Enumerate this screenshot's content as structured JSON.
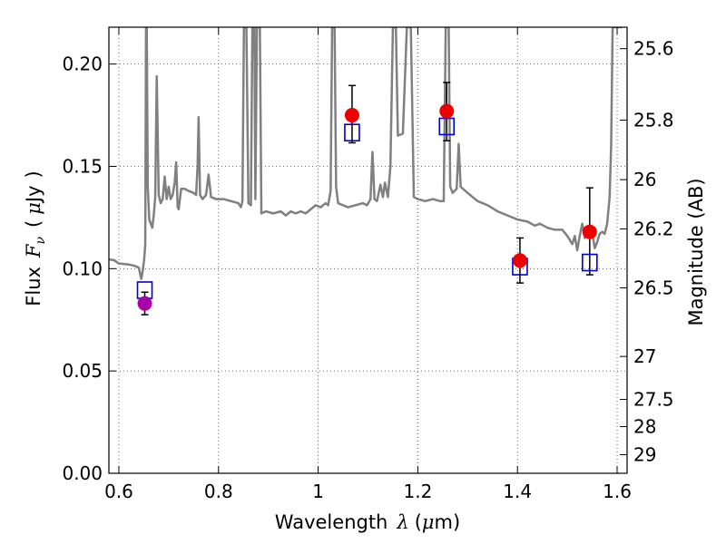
{
  "chart_data": {
    "type": "scatter",
    "xlabel": "Wavelength",
    "xlabel_symbol": "λ",
    "xlabel_unit_open": "(",
    "xlabel_unit_mu": "μ",
    "xlabel_unit_rest": "m)",
    "ylabel": "Flux",
    "ylabel_symbol": "F",
    "ylabel_subscript": "ν",
    "ylabel_unit_open": "(",
    "ylabel_unit_mu": "μ",
    "ylabel_unit_rest": "Jy",
    "ylabel_unit_close": ")",
    "y2label": "Magnitude (AB)",
    "xlim": [
      0.58,
      1.62
    ],
    "ylim": [
      0.0,
      0.218
    ],
    "grid": true,
    "x_ticks": [
      0.6,
      0.8,
      1.0,
      1.2,
      1.4,
      1.6
    ],
    "x_tick_labels": [
      "0.6",
      "0.8",
      "1",
      "1.2",
      "1.4",
      "1.6"
    ],
    "y_ticks": [
      0.0,
      0.05,
      0.1,
      0.15,
      0.2
    ],
    "y_tick_labels": [
      "0.00",
      "0.05",
      "0.10",
      "0.15",
      "0.20"
    ],
    "y2_ticks": [
      {
        "label": "25.6",
        "flux": 0.2075
      },
      {
        "label": "25.8",
        "flux": 0.1726
      },
      {
        "label": "26",
        "flux": 0.1435
      },
      {
        "label": "26.2",
        "flux": 0.1194
      },
      {
        "label": "26.5",
        "flux": 0.0906
      },
      {
        "label": "27",
        "flux": 0.0571
      },
      {
        "label": "27.5",
        "flux": 0.0361
      },
      {
        "label": "28",
        "flux": 0.0228
      },
      {
        "label": "29",
        "flux": 0.0091
      }
    ],
    "model_spectrum": {
      "color": "#808080",
      "points": [
        [
          0.58,
          0.1045
        ],
        [
          0.59,
          0.1042
        ],
        [
          0.6,
          0.1025
        ],
        [
          0.62,
          0.102
        ],
        [
          0.63,
          0.1015
        ],
        [
          0.64,
          0.1005
        ],
        [
          0.645,
          0.095
        ],
        [
          0.648,
          0.099
        ],
        [
          0.651,
          0.105
        ],
        [
          0.653,
          0.112
        ],
        [
          0.6545,
          0.218
        ],
        [
          0.656,
          0.218
        ],
        [
          0.658,
          0.14
        ],
        [
          0.661,
          0.124
        ],
        [
          0.664,
          0.122
        ],
        [
          0.667,
          0.12
        ],
        [
          0.67,
          0.126
        ],
        [
          0.673,
          0.135
        ],
        [
          0.676,
          0.194
        ],
        [
          0.68,
          0.136
        ],
        [
          0.684,
          0.132
        ],
        [
          0.688,
          0.134
        ],
        [
          0.692,
          0.145
        ],
        [
          0.696,
          0.134
        ],
        [
          0.7,
          0.14
        ],
        [
          0.704,
          0.134
        ],
        [
          0.708,
          0.136
        ],
        [
          0.712,
          0.142
        ],
        [
          0.715,
          0.152
        ],
        [
          0.718,
          0.13
        ],
        [
          0.72,
          0.129
        ],
        [
          0.725,
          0.139
        ],
        [
          0.732,
          0.139
        ],
        [
          0.74,
          0.138
        ],
        [
          0.75,
          0.137
        ],
        [
          0.755,
          0.136
        ],
        [
          0.758,
          0.15
        ],
        [
          0.76,
          0.174
        ],
        [
          0.763,
          0.136
        ],
        [
          0.768,
          0.134
        ],
        [
          0.775,
          0.136
        ],
        [
          0.78,
          0.146
        ],
        [
          0.785,
          0.135
        ],
        [
          0.795,
          0.134
        ],
        [
          0.81,
          0.134
        ],
        [
          0.825,
          0.133
        ],
        [
          0.84,
          0.132
        ],
        [
          0.845,
          0.13
        ],
        [
          0.848,
          0.133
        ],
        [
          0.851,
          0.218
        ],
        [
          0.856,
          0.218
        ],
        [
          0.86,
          0.132
        ],
        [
          0.865,
          0.131
        ],
        [
          0.868,
          0.218
        ],
        [
          0.872,
          0.218
        ],
        [
          0.874,
          0.134
        ],
        [
          0.877,
          0.218
        ],
        [
          0.883,
          0.218
        ],
        [
          0.886,
          0.127
        ],
        [
          0.895,
          0.128
        ],
        [
          0.91,
          0.127
        ],
        [
          0.925,
          0.128
        ],
        [
          0.935,
          0.126
        ],
        [
          0.945,
          0.128
        ],
        [
          0.955,
          0.127
        ],
        [
          0.965,
          0.128
        ],
        [
          0.975,
          0.127
        ],
        [
          0.985,
          0.129
        ],
        [
          0.995,
          0.131
        ],
        [
          1.005,
          0.13
        ],
        [
          1.015,
          0.132
        ],
        [
          1.02,
          0.131
        ],
        [
          1.025,
          0.138
        ],
        [
          1.028,
          0.218
        ],
        [
          1.033,
          0.218
        ],
        [
          1.036,
          0.14
        ],
        [
          1.04,
          0.132
        ],
        [
          1.05,
          0.131
        ],
        [
          1.06,
          0.13
        ],
        [
          1.075,
          0.131
        ],
        [
          1.09,
          0.132
        ],
        [
          1.098,
          0.131
        ],
        [
          1.105,
          0.134
        ],
        [
          1.109,
          0.157
        ],
        [
          1.113,
          0.134
        ],
        [
          1.118,
          0.133
        ],
        [
          1.125,
          0.141
        ],
        [
          1.13,
          0.135
        ],
        [
          1.134,
          0.142
        ],
        [
          1.14,
          0.135
        ],
        [
          1.145,
          0.15
        ],
        [
          1.15,
          0.218
        ],
        [
          1.156,
          0.218
        ],
        [
          1.16,
          0.165
        ],
        [
          1.17,
          0.166
        ],
        [
          1.178,
          0.218
        ],
        [
          1.186,
          0.218
        ],
        [
          1.192,
          0.135
        ],
        [
          1.2,
          0.134
        ],
        [
          1.215,
          0.133
        ],
        [
          1.23,
          0.134
        ],
        [
          1.245,
          0.133
        ],
        [
          1.252,
          0.133
        ],
        [
          1.256,
          0.218
        ],
        [
          1.262,
          0.218
        ],
        [
          1.265,
          0.14
        ],
        [
          1.27,
          0.137
        ],
        [
          1.278,
          0.139
        ],
        [
          1.282,
          0.161
        ],
        [
          1.286,
          0.14
        ],
        [
          1.3,
          0.137
        ],
        [
          1.32,
          0.133
        ],
        [
          1.34,
          0.131
        ],
        [
          1.36,
          0.128
        ],
        [
          1.38,
          0.126
        ],
        [
          1.4,
          0.124
        ],
        [
          1.42,
          0.123
        ],
        [
          1.435,
          0.121
        ],
        [
          1.445,
          0.122
        ],
        [
          1.46,
          0.12
        ],
        [
          1.475,
          0.119
        ],
        [
          1.49,
          0.119
        ],
        [
          1.5,
          0.116
        ],
        [
          1.51,
          0.112
        ],
        [
          1.515,
          0.116
        ],
        [
          1.52,
          0.109
        ],
        [
          1.525,
          0.116
        ],
        [
          1.53,
          0.122
        ],
        [
          1.535,
          0.115
        ],
        [
          1.54,
          0.119
        ],
        [
          1.545,
          0.117
        ],
        [
          1.55,
          0.118
        ],
        [
          1.555,
          0.11
        ],
        [
          1.56,
          0.113
        ],
        [
          1.565,
          0.117
        ],
        [
          1.57,
          0.118
        ],
        [
          1.575,
          0.117
        ],
        [
          1.58,
          0.122
        ],
        [
          1.585,
          0.135
        ],
        [
          1.588,
          0.16
        ],
        [
          1.591,
          0.218
        ],
        [
          1.61,
          0.218
        ]
      ]
    },
    "series": [
      {
        "marker": "open-square",
        "color": "#0000cc",
        "points": [
          {
            "x": 0.652,
            "y": 0.0895
          },
          {
            "x": 1.068,
            "y": 0.1665
          },
          {
            "x": 1.258,
            "y": 0.1695
          },
          {
            "x": 1.405,
            "y": 0.101
          },
          {
            "x": 1.545,
            "y": 0.103
          }
        ]
      },
      {
        "marker": "filled-circle",
        "points": [
          {
            "x": 0.652,
            "y": 0.083,
            "ylo": 0.0775,
            "yhi": 0.0885,
            "color": "#aa00aa"
          },
          {
            "x": 1.068,
            "y": 0.175,
            "ylo": 0.1615,
            "yhi": 0.1895,
            "color": "#ee0000"
          },
          {
            "x": 1.258,
            "y": 0.177,
            "ylo": 0.1625,
            "yhi": 0.191,
            "color": "#ee0000"
          },
          {
            "x": 1.405,
            "y": 0.104,
            "ylo": 0.093,
            "yhi": 0.115,
            "color": "#ee0000"
          },
          {
            "x": 1.545,
            "y": 0.118,
            "ylo": 0.097,
            "yhi": 0.1395,
            "color": "#ee0000"
          }
        ]
      }
    ]
  }
}
